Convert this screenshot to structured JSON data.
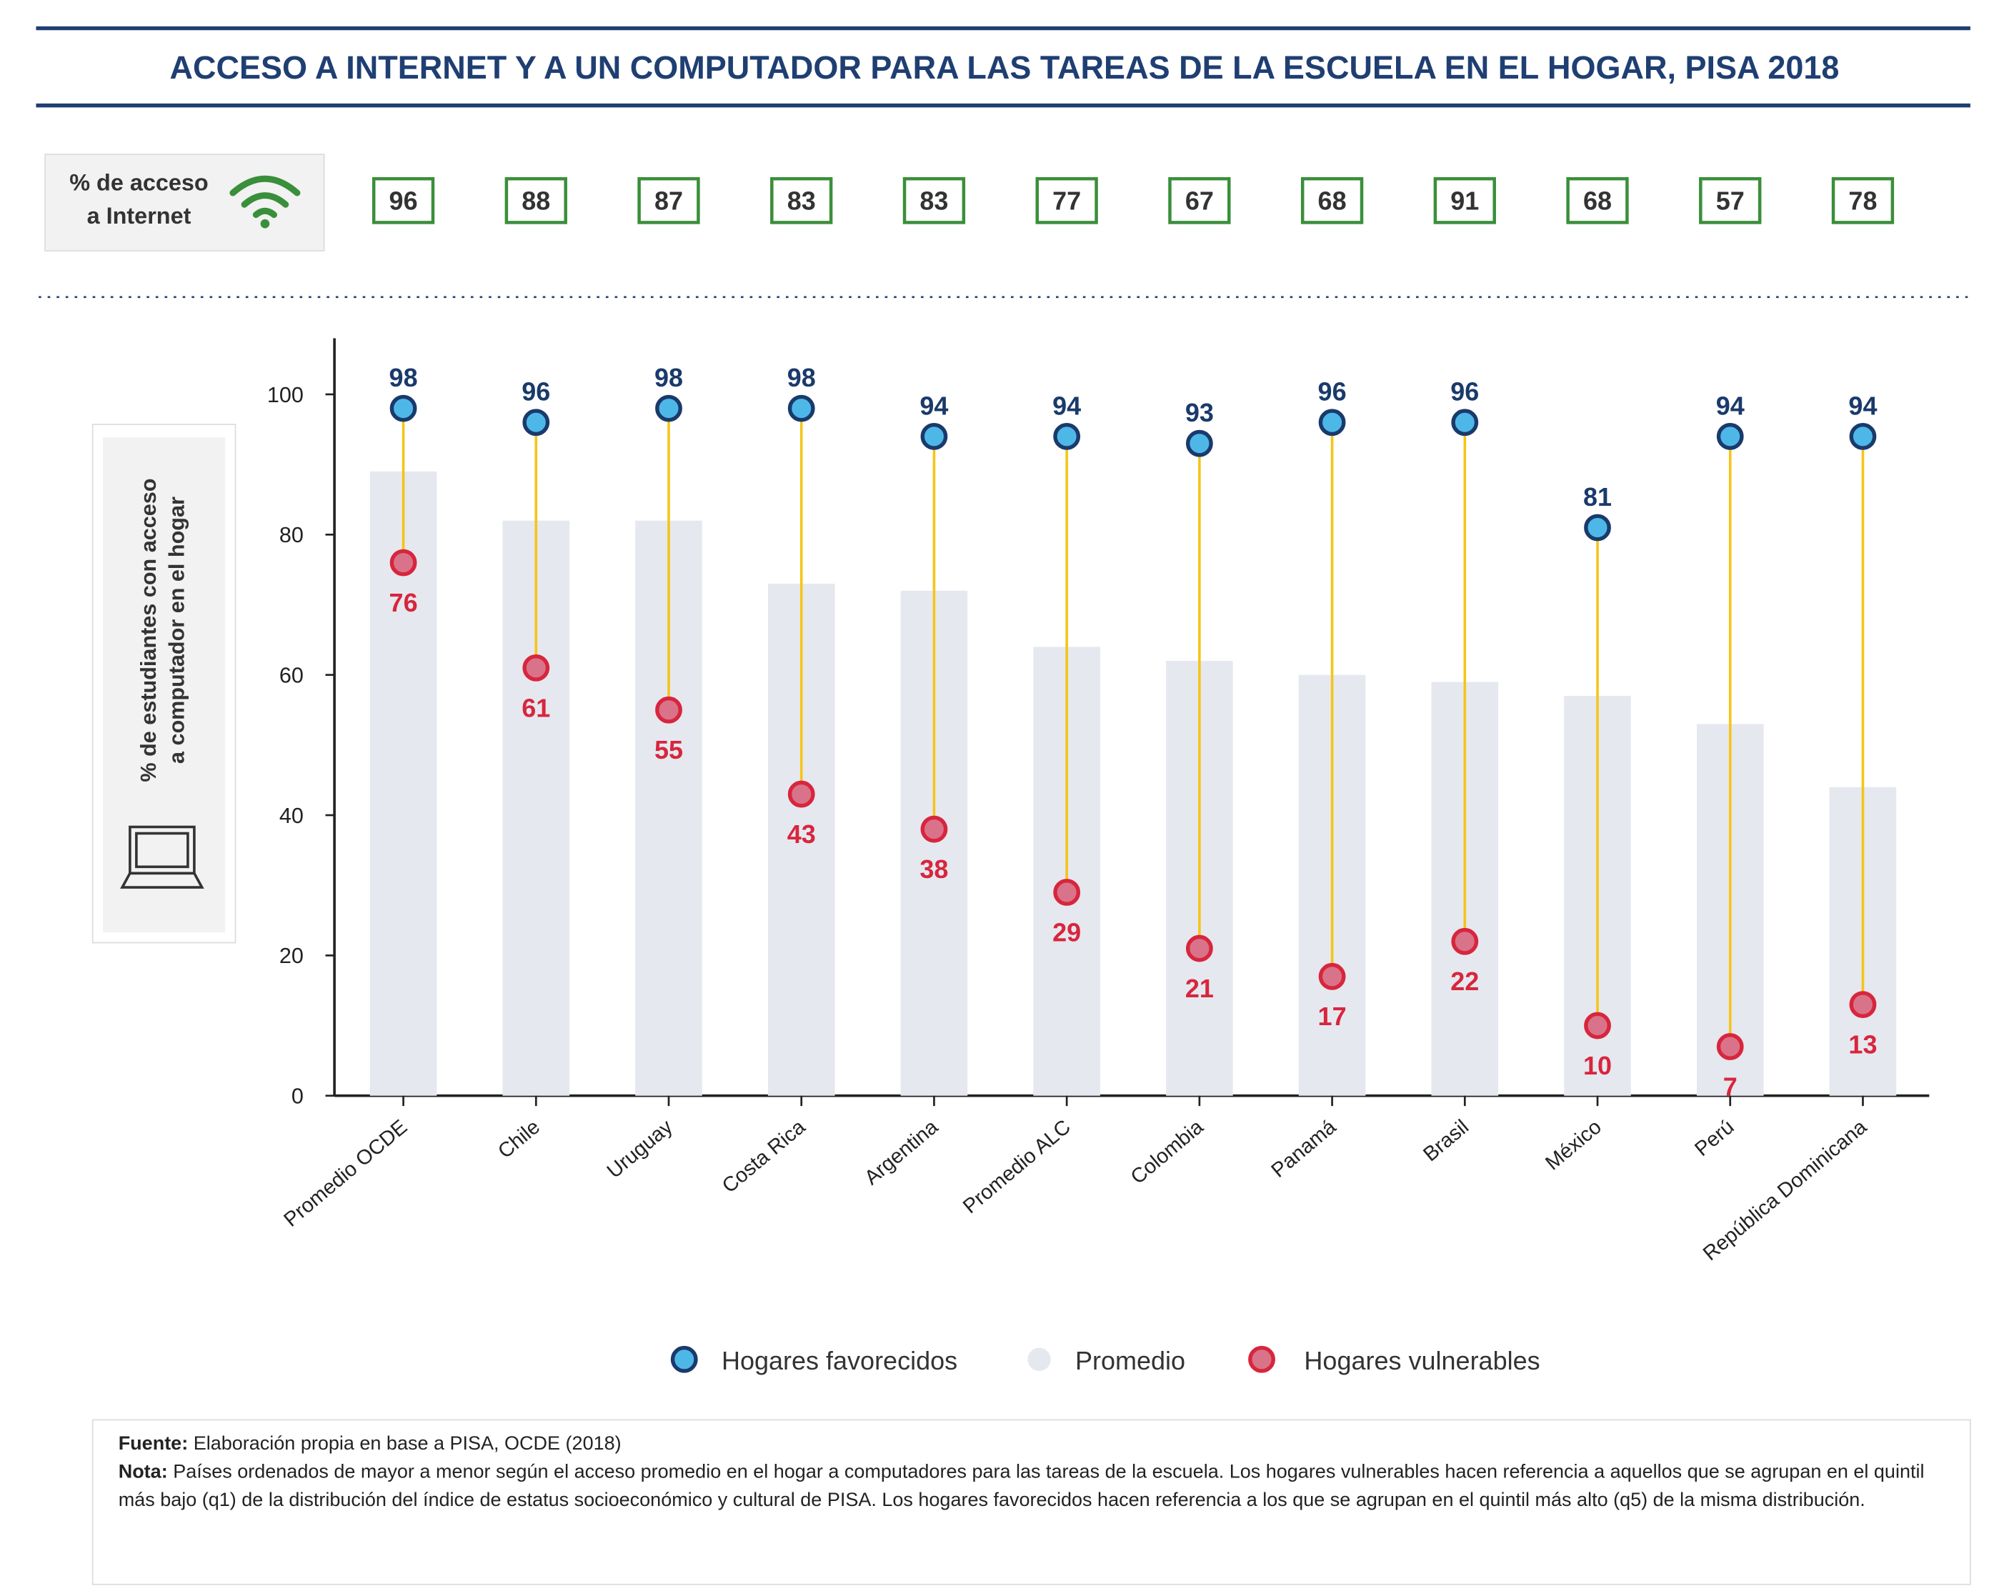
{
  "chart_data": {
    "type": "dumbbell",
    "title": "ACCESO A INTERNET Y A UN COMPUTADOR PARA LAS TAREAS DE LA ESCUELA EN EL HOGAR, PISA 2018",
    "internet_label": [
      "% de acceso",
      "a Internet"
    ],
    "internet_access": [
      96,
      88,
      87,
      83,
      83,
      77,
      67,
      68,
      91,
      68,
      57,
      78
    ],
    "y_label": [
      "% de estudiantes con acceso",
      "a computador  en el hogar"
    ],
    "categories": [
      "Promedio OCDE",
      "Chile",
      "Uruguay",
      "Costa Rica",
      "Argentina",
      "Promedio ALC",
      "Colombia",
      "Panamá",
      "Brasil",
      "México",
      "Perú",
      "República Dominicana"
    ],
    "series": [
      {
        "name": "Hogares favorecidos",
        "color": "#4db8e8",
        "values": [
          98,
          96,
          98,
          98,
          94,
          94,
          93,
          96,
          96,
          81,
          94,
          94
        ]
      },
      {
        "name": "Promedio",
        "color": "#e6e8ef",
        "values": [
          89,
          82,
          82,
          73,
          72,
          64,
          62,
          60,
          59,
          57,
          53,
          44
        ]
      },
      {
        "name": "Hogares vulnerables",
        "color": "#d9738a",
        "values": [
          76,
          61,
          55,
          43,
          38,
          29,
          21,
          17,
          22,
          10,
          7,
          13
        ]
      }
    ],
    "ylim": [
      0,
      108
    ],
    "yticks": [
      0,
      20,
      40,
      60,
      80,
      100
    ],
    "source_label": "Fuente:",
    "source": "Elaboración propia en base a PISA, OCDE (2018)",
    "note_label": "Nota:",
    "note": "Países ordenados de mayor a menor según el acceso promedio en el hogar a computadores para las tareas de la escuela.  Los hogares vulnerables hacen referencia a aquellos que se agrupan en el quintil más bajo (q1) de la distribución del índice de estatus socioeconómico y cultural de PISA. Los hogares favorecidos hacen referencia a los que se agrupan en el quintil más alto (q5) de la misma distribución."
  }
}
